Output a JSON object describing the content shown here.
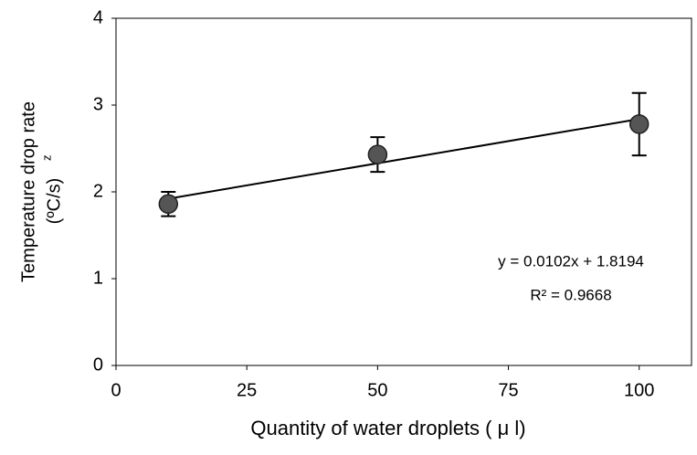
{
  "chart_data": {
    "type": "scatter",
    "xlabel": "Quantity of water droplets ( μ l)",
    "ylabel": [
      "Temperature drop rate",
      "(ºC/s)"
    ],
    "ylabel_superscript": "z",
    "x": [
      10,
      50,
      100
    ],
    "series": [
      {
        "values": [
          1.86,
          2.43,
          2.78
        ],
        "errors": [
          0.14,
          0.2,
          0.36
        ],
        "color": "#555555"
      }
    ],
    "trendline": {
      "x": [
        10,
        100
      ],
      "values": [
        1.9214,
        2.8394
      ],
      "color": "#000000"
    },
    "annotations": [
      "y = 0.0102x + 1.8194",
      "R² = 0.9668"
    ],
    "xlim": [
      0,
      110
    ],
    "xticks": [
      0,
      25,
      50,
      75,
      100
    ],
    "ylim": [
      0,
      4
    ],
    "yticks": [
      0,
      1,
      2,
      3,
      4
    ],
    "grid": false
  }
}
